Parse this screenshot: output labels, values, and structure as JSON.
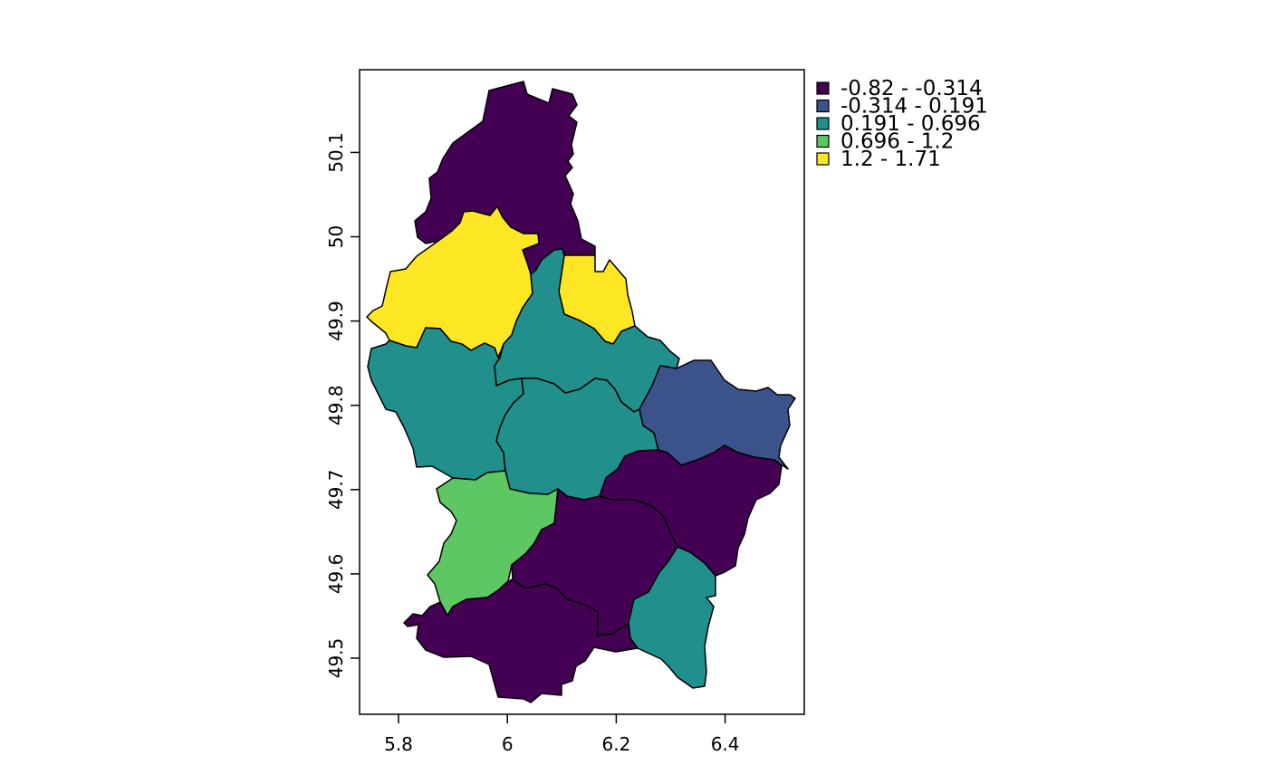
{
  "map": {
    "xaxis": {
      "ticks": [
        {
          "value": 5.8,
          "label": "5.8"
        },
        {
          "value": 6.0,
          "label": "6"
        },
        {
          "value": 6.2,
          "label": "6.2"
        },
        {
          "value": 6.4,
          "label": "6.4"
        }
      ]
    },
    "yaxis": {
      "ticks": [
        {
          "value": 49.5,
          "label": "49.5"
        },
        {
          "value": 49.6,
          "label": "49.6"
        },
        {
          "value": 49.7,
          "label": "49.7"
        },
        {
          "value": 49.8,
          "label": "49.8"
        },
        {
          "value": 49.9,
          "label": "49.9"
        },
        {
          "value": 50.0,
          "label": "50"
        },
        {
          "value": 50.1,
          "label": "50.1"
        }
      ]
    },
    "legend": {
      "placement": "top-right",
      "items": [
        {
          "label": "-0.82 - -0.314",
          "color": "#440154"
        },
        {
          "label": "-0.314 - 0.191",
          "color": "#3B528B"
        },
        {
          "label": "0.191 - 0.696",
          "color": "#21908C"
        },
        {
          "label": "0.696 - 1.2",
          "color": "#5DC863"
        },
        {
          "label": "1.2 - 1.71",
          "color": "#FDE725"
        }
      ]
    }
  }
}
